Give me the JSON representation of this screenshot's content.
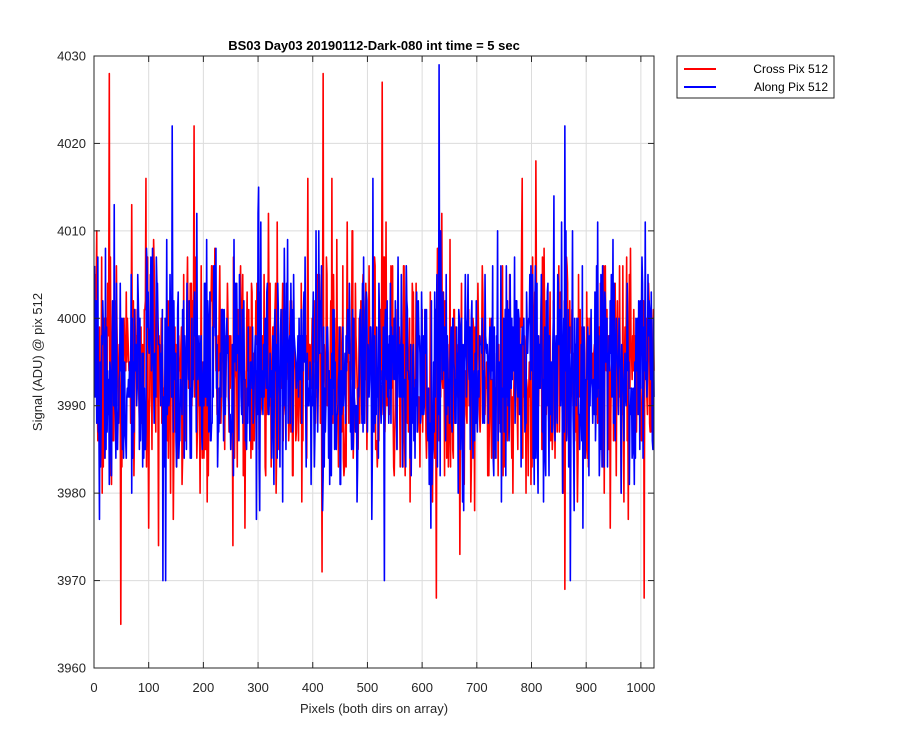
{
  "chart_data": {
    "type": "line",
    "title": "BS03 Day03 20190112-Dark-080 int time = 5 sec",
    "xlabel": "Pixels (both dirs on array)",
    "ylabel": "Signal (ADU) @ pix 512",
    "xlim": [
      0,
      1024
    ],
    "ylim": [
      3960,
      4030
    ],
    "xticks": [
      0,
      100,
      200,
      300,
      400,
      500,
      600,
      700,
      800,
      900,
      1000
    ],
    "yticks": [
      3960,
      3970,
      3980,
      3990,
      4000,
      4010,
      4020,
      4030
    ],
    "grid": true,
    "legend": "outside-top-right",
    "series": [
      {
        "name": "Cross Pix 512",
        "color": "#ff0000",
        "mean": 3994,
        "spread": 7,
        "seed": 7,
        "num_points": 1024,
        "notable_points": [
          [
            27,
            4028
          ],
          [
            48,
            3965
          ],
          [
            182,
            4022
          ],
          [
            418,
            4028
          ],
          [
            416,
            3971
          ],
          [
            526,
            4027
          ],
          [
            625,
            3968
          ],
          [
            860,
            3969
          ],
          [
            1005,
            3968
          ],
          [
            807,
            4018
          ]
        ]
      },
      {
        "name": "Along Pix 512",
        "color": "#0000ff",
        "mean": 3994,
        "spread": 7,
        "seed": 19,
        "num_points": 1024,
        "notable_points": [
          [
            142,
            4022
          ],
          [
            125,
            3970
          ],
          [
            130,
            3970
          ],
          [
            630,
            4029
          ],
          [
            530,
            3970
          ],
          [
            860,
            4022
          ],
          [
            870,
            3970
          ],
          [
            300,
            4015
          ]
        ]
      }
    ]
  }
}
